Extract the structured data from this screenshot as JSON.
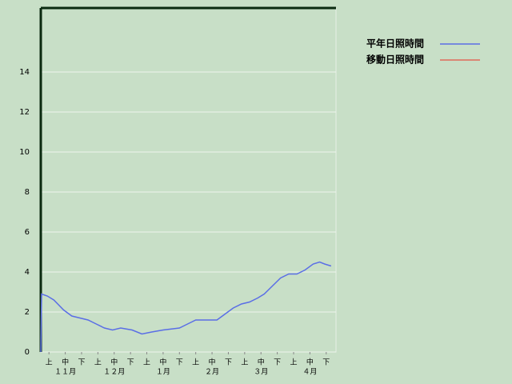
{
  "chart_data": {
    "type": "line",
    "x": [
      0,
      0.5,
      4,
      8,
      14,
      19,
      24,
      29,
      34,
      39,
      44,
      49,
      56,
      62,
      68,
      75,
      85,
      90,
      95,
      108,
      113,
      118,
      123,
      128,
      133,
      137,
      142,
      147,
      152,
      157,
      162,
      167,
      171,
      174,
      178
    ],
    "xlim": [
      0,
      181
    ],
    "xticks": [
      {
        "value": 5,
        "label": "上"
      },
      {
        "value": 15,
        "label": "中"
      },
      {
        "value": 25,
        "label": "下"
      },
      {
        "value": 35,
        "label": "上"
      },
      {
        "value": 45,
        "label": "中"
      },
      {
        "value": 55,
        "label": "下"
      },
      {
        "value": 65,
        "label": "上"
      },
      {
        "value": 75,
        "label": "中"
      },
      {
        "value": 85,
        "label": "下"
      },
      {
        "value": 95,
        "label": "上"
      },
      {
        "value": 105,
        "label": "中"
      },
      {
        "value": 115,
        "label": "下"
      },
      {
        "value": 125,
        "label": "上"
      },
      {
        "value": 135,
        "label": "中"
      },
      {
        "value": 145,
        "label": "下"
      },
      {
        "value": 155,
        "label": "上"
      },
      {
        "value": 165,
        "label": "中"
      },
      {
        "value": 175,
        "label": "下"
      }
    ],
    "month_labels": [
      {
        "value": 15,
        "label": "１１月"
      },
      {
        "value": 45,
        "label": "１２月"
      },
      {
        "value": 75,
        "label": "１月"
      },
      {
        "value": 105,
        "label": "２月"
      },
      {
        "value": 135,
        "label": "３月"
      },
      {
        "value": 165,
        "label": "４月"
      }
    ],
    "ylim": [
      0,
      17.2
    ],
    "yticks": [
      0,
      2,
      4,
      6,
      8,
      10,
      12,
      14
    ],
    "grid": true,
    "legend": "top-right",
    "series": [
      {
        "name": "平年日照時間",
        "color": "#5a6ee6",
        "values": [
          0,
          2.9,
          2.8,
          2.6,
          2.1,
          1.8,
          1.7,
          1.6,
          1.4,
          1.2,
          1.1,
          1.2,
          1.1,
          0.9,
          1.0,
          1.1,
          1.2,
          1.4,
          1.6,
          1.6,
          1.9,
          2.2,
          2.4,
          2.5,
          2.7,
          2.9,
          3.3,
          3.7,
          3.9,
          3.9,
          4.1,
          4.4,
          4.5,
          4.4,
          4.3
        ]
      },
      {
        "name": "移動日照時間",
        "color": "#e06a5a",
        "values": [
          null,
          null,
          null,
          null,
          null,
          null,
          null,
          null,
          null,
          null,
          null,
          null,
          null,
          null,
          null,
          null,
          null,
          null,
          null,
          null,
          null,
          null,
          null,
          null,
          null,
          null,
          null,
          null,
          null,
          null,
          null,
          null,
          null,
          null,
          null
        ]
      }
    ]
  }
}
